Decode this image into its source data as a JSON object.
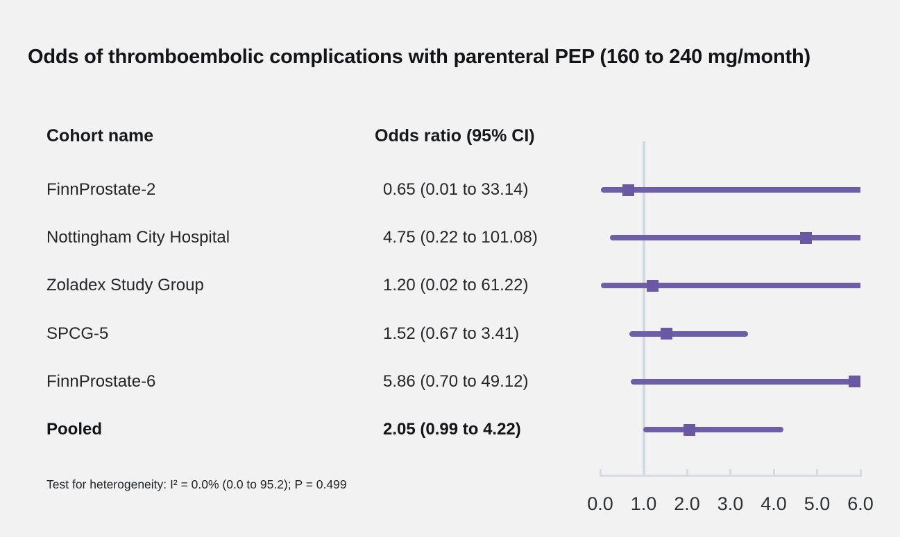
{
  "title": "Odds of thromboembolic complications with parenteral PEP (160 to 240 mg/month)",
  "columns": {
    "cohort": "Cohort name",
    "odds_ratio": "Odds ratio (95% CI)"
  },
  "footnote": "Test for heterogeneity: I² = 0.0% (0.0 to 95.2); P = 0.499",
  "colors": {
    "background": "#f2f2f2",
    "marker_purple": "#6a58a5",
    "line_purple": "#6e5ea8",
    "axis_gray": "#d6dae1",
    "reference_line_gray": "#d3d8e0",
    "text_dark": "#121417"
  },
  "chart_data": {
    "type": "forest",
    "title": "Odds of thromboembolic complications with parenteral PEP (160 to 240 mg/month)",
    "xlabel": "",
    "ylabel": "",
    "xlim": [
      0,
      6
    ],
    "xtick_values": [
      0,
      1,
      2,
      3,
      4,
      5,
      6
    ],
    "xtick_labels": [
      "0.0",
      "1.0",
      "2.0",
      "3.0",
      "4.0",
      "5.0",
      "6.0"
    ],
    "reference_line_x": 1.0,
    "grid": false,
    "legend": "none",
    "rows": [
      {
        "cohort": "FinnProstate-2",
        "or_text": "0.65 (0.01 to 33.14)",
        "or": 0.65,
        "ci_low": 0.01,
        "ci_high": 33.14,
        "bold": false
      },
      {
        "cohort": "Nottingham City Hospital",
        "or_text": "4.75 (0.22 to 101.08)",
        "or": 4.75,
        "ci_low": 0.22,
        "ci_high": 101.08,
        "bold": false
      },
      {
        "cohort": "Zoladex Study Group",
        "or_text": "1.20 (0.02 to 61.22)",
        "or": 1.2,
        "ci_low": 0.02,
        "ci_high": 61.22,
        "bold": false
      },
      {
        "cohort": "SPCG-5",
        "or_text": "1.52 (0.67 to 3.41)",
        "or": 1.52,
        "ci_low": 0.67,
        "ci_high": 3.41,
        "bold": false
      },
      {
        "cohort": "FinnProstate-6",
        "or_text": "5.86 (0.70 to 49.12)",
        "or": 5.86,
        "ci_low": 0.7,
        "ci_high": 49.12,
        "bold": false
      },
      {
        "cohort": "Pooled",
        "or_text": "2.05 (0.99 to 4.22)",
        "or": 2.05,
        "ci_low": 0.99,
        "ci_high": 4.22,
        "bold": true
      }
    ]
  }
}
